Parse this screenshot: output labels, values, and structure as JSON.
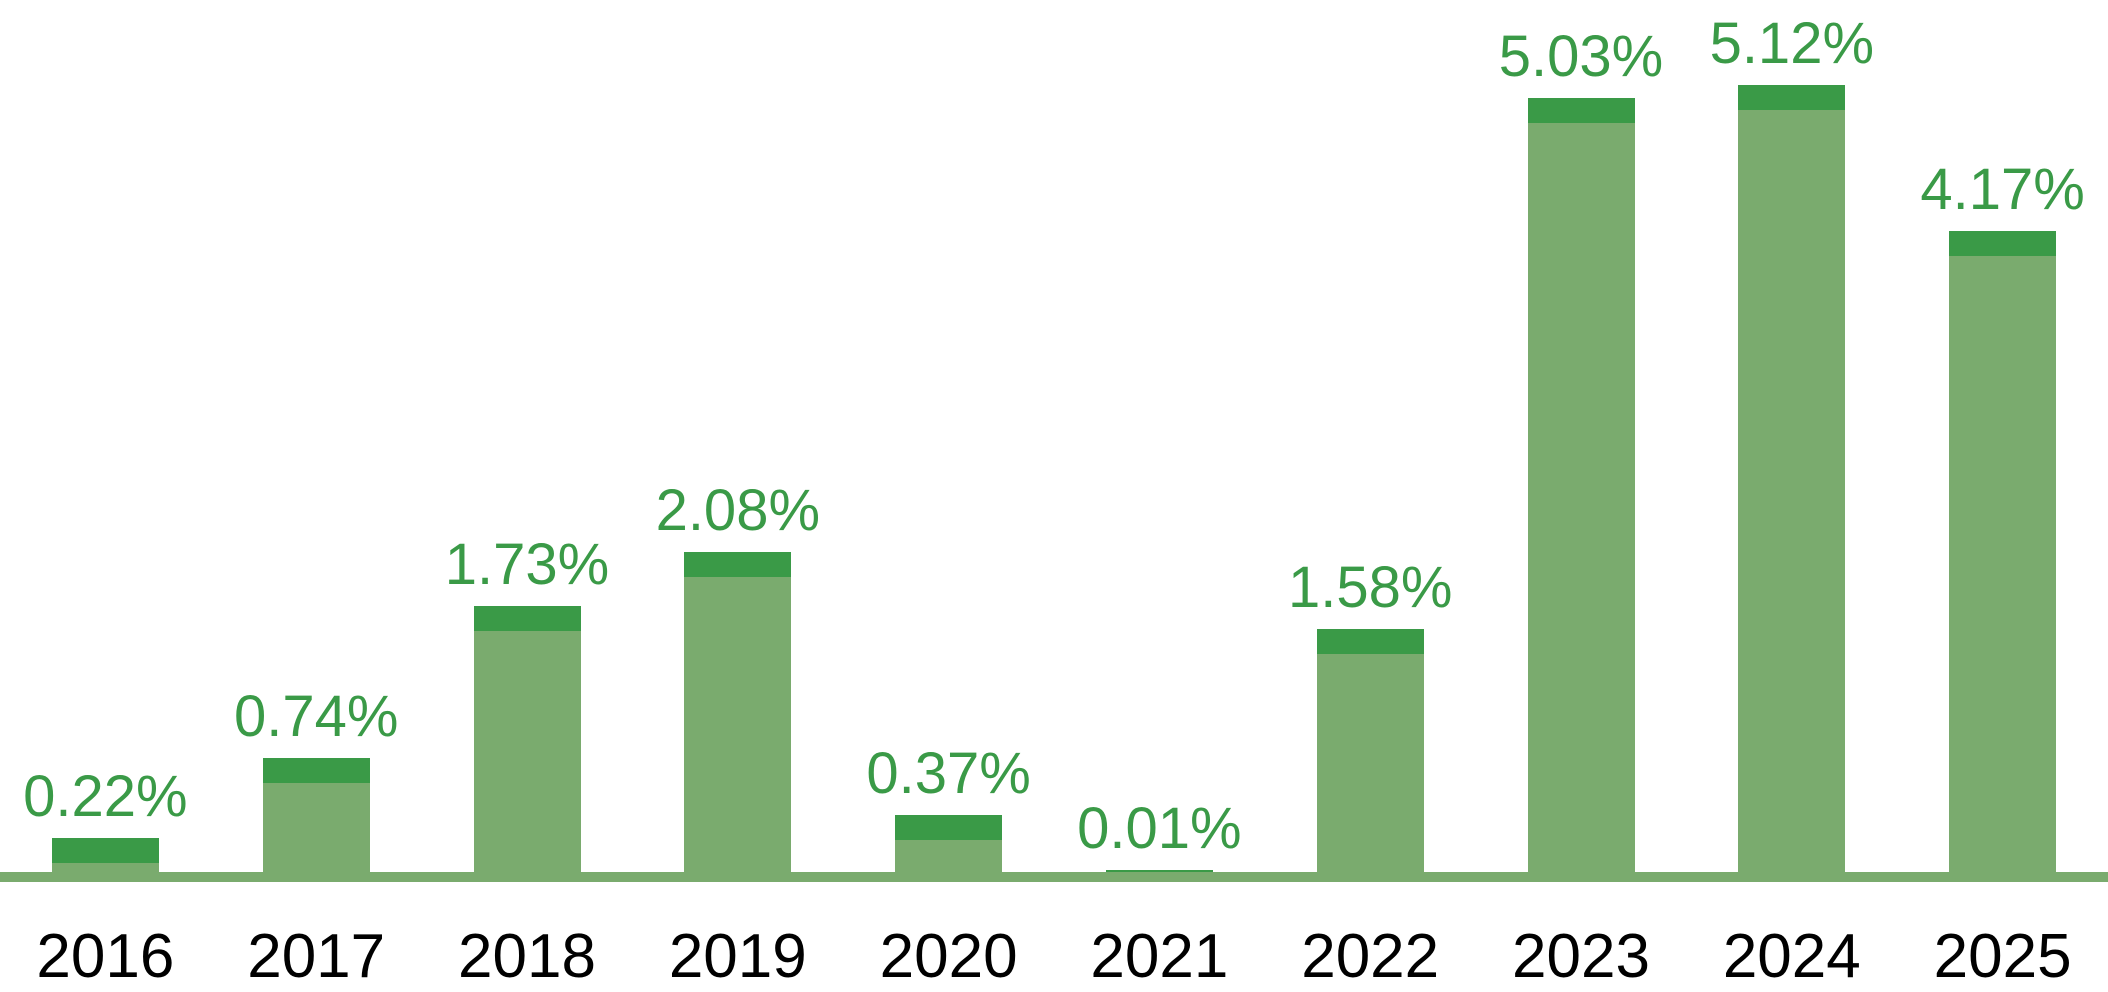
{
  "chart_data": {
    "type": "bar",
    "title": "",
    "xlabel": "",
    "ylabel": "",
    "categories": [
      "2016",
      "2017",
      "2018",
      "2019",
      "2020",
      "2021",
      "2022",
      "2023",
      "2024",
      "2025"
    ],
    "values": [
      0.22,
      0.74,
      1.73,
      2.08,
      0.37,
      0.01,
      1.58,
      5.03,
      5.12,
      4.17
    ],
    "labels": [
      "0.22%",
      "0.74%",
      "1.73%",
      "2.08%",
      "0.37%",
      "0.01%",
      "1.58%",
      "5.03%",
      "5.12%",
      "4.17%"
    ],
    "unit": "%",
    "ylim": [
      0,
      5.67
    ],
    "grid": false,
    "legend": null,
    "bar_style": "light body with fixed dark cap at top, value label above each bar",
    "colors": {
      "bar_body": "#7aab6e",
      "bar_cap": "#3a9a47",
      "value_label": "#3a9a47",
      "year_label": "#000000",
      "axis_line": "#7aab6e",
      "background": "#ffffff"
    }
  }
}
